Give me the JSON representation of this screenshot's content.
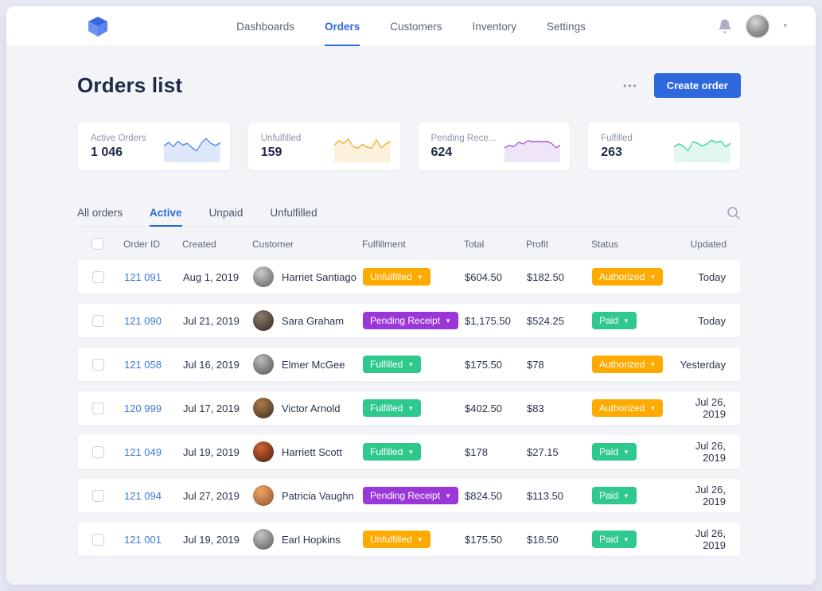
{
  "nav": {
    "items": [
      {
        "label": "Dashboards",
        "active": false
      },
      {
        "label": "Orders",
        "active": true
      },
      {
        "label": "Customers",
        "active": false
      },
      {
        "label": "Inventory",
        "active": false
      },
      {
        "label": "Settings",
        "active": false
      }
    ]
  },
  "header": {
    "title": "Orders list",
    "more_label": "•••",
    "create_button": "Create order",
    "accent_color": "#2e68dd"
  },
  "stats": {
    "cards": [
      {
        "label": "Active Orders",
        "value": "1 046",
        "line_color": "#5b8def",
        "fill_color": "#dfe8fa",
        "points": [
          48,
          62,
          46,
          66,
          52,
          58,
          42,
          30,
          60,
          76,
          58,
          50,
          60
        ]
      },
      {
        "label": "Unfulfilled",
        "value": "159",
        "line_color": "#f5b33b",
        "fill_color": "#fcf2dc",
        "points": [
          52,
          68,
          58,
          74,
          46,
          40,
          54,
          44,
          40,
          72,
          42,
          56,
          64
        ]
      },
      {
        "label": "Pending Rece...",
        "value": "624",
        "line_color": "#b06ad4",
        "fill_color": "#f0e4f8",
        "points": [
          42,
          50,
          46,
          62,
          56,
          68,
          64,
          66,
          64,
          66,
          58,
          42,
          52
        ]
      },
      {
        "label": "Fulfilled",
        "value": "263",
        "line_color": "#4cd7a0",
        "fill_color": "#e2f7ee",
        "points": [
          46,
          56,
          48,
          30,
          64,
          58,
          48,
          56,
          70,
          62,
          66,
          46,
          58
        ]
      }
    ]
  },
  "tabs": {
    "items": [
      {
        "label": "All orders",
        "active": false
      },
      {
        "label": "Active",
        "active": true
      },
      {
        "label": "Unpaid",
        "active": false
      },
      {
        "label": "Unfulfilled",
        "active": false
      }
    ]
  },
  "table": {
    "headers": {
      "order_id": "Order ID",
      "created": "Created",
      "customer": "Customer",
      "fulfillment": "Fulfillment",
      "total": "Total",
      "profit": "Profit",
      "status": "Status",
      "updated": "Updated"
    },
    "badge_colors": {
      "orange": "#ffaa00",
      "green": "#2fc98e",
      "purple": "#9b36d9"
    },
    "rows": [
      {
        "order_id": "121 091",
        "created": "Aug 1, 2019",
        "customer": "Harriet Santiago",
        "avatar_colors": [
          "#c9c9c9",
          "#5f5f5f"
        ],
        "fulfillment": {
          "label": "Unfulfilled",
          "color": "#ffaa00"
        },
        "total": "$604.50",
        "profit": "$182.50",
        "status": {
          "label": "Authorized",
          "color": "#ffaa00"
        },
        "updated": "Today"
      },
      {
        "order_id": "121 090",
        "created": "Jul 21, 2019",
        "customer": "Sara Graham",
        "avatar_colors": [
          "#8a7a6d",
          "#332a22"
        ],
        "fulfillment": {
          "label": "Pending Receipt",
          "color": "#9b36d9"
        },
        "total": "$1,175.50",
        "profit": "$524.25",
        "status": {
          "label": "Paid",
          "color": "#2fc98e"
        },
        "updated": "Today"
      },
      {
        "order_id": "121 058",
        "created": "Jul 16, 2019",
        "customer": "Elmer McGee",
        "avatar_colors": [
          "#bdbdbd",
          "#4e4e4e"
        ],
        "fulfillment": {
          "label": "Fulfilled",
          "color": "#2fc98e"
        },
        "total": "$175.50",
        "profit": "$78",
        "status": {
          "label": "Authorized",
          "color": "#ffaa00"
        },
        "updated": "Yesterday"
      },
      {
        "order_id": "120 999",
        "created": "Jul 17, 2019",
        "customer": "Victor Arnold",
        "avatar_colors": [
          "#a97b4f",
          "#402c1d"
        ],
        "fulfillment": {
          "label": "Fulfilled",
          "color": "#2fc98e"
        },
        "total": "$402.50",
        "profit": "$83",
        "status": {
          "label": "Authorized",
          "color": "#ffaa00"
        },
        "updated": "Jul 26, 2019"
      },
      {
        "order_id": "121 049",
        "created": "Jul 19, 2019",
        "customer": "Harriett Scott",
        "avatar_colors": [
          "#d06336",
          "#4b1d10"
        ],
        "fulfillment": {
          "label": "Fulfilled",
          "color": "#2fc98e"
        },
        "total": "$178",
        "profit": "$27.15",
        "status": {
          "label": "Paid",
          "color": "#2fc98e"
        },
        "updated": "Jul 26, 2019"
      },
      {
        "order_id": "121 094",
        "created": "Jul 27, 2019",
        "customer": "Patricia Vaughn",
        "avatar_colors": [
          "#eda868",
          "#91502a"
        ],
        "fulfillment": {
          "label": "Pending Receipt",
          "color": "#9b36d9"
        },
        "total": "$824.50",
        "profit": "$113.50",
        "status": {
          "label": "Paid",
          "color": "#2fc98e"
        },
        "updated": "Jul 26, 2019"
      },
      {
        "order_id": "121 001",
        "created": "Jul 19, 2019",
        "customer": "Earl Hopkins",
        "avatar_colors": [
          "#c6c6c6",
          "#575757"
        ],
        "fulfillment": {
          "label": "Unfulfilled",
          "color": "#ffaa00"
        },
        "total": "$175.50",
        "profit": "$18.50",
        "status": {
          "label": "Paid",
          "color": "#2fc98e"
        },
        "updated": "Jul 26, 2019"
      }
    ]
  }
}
